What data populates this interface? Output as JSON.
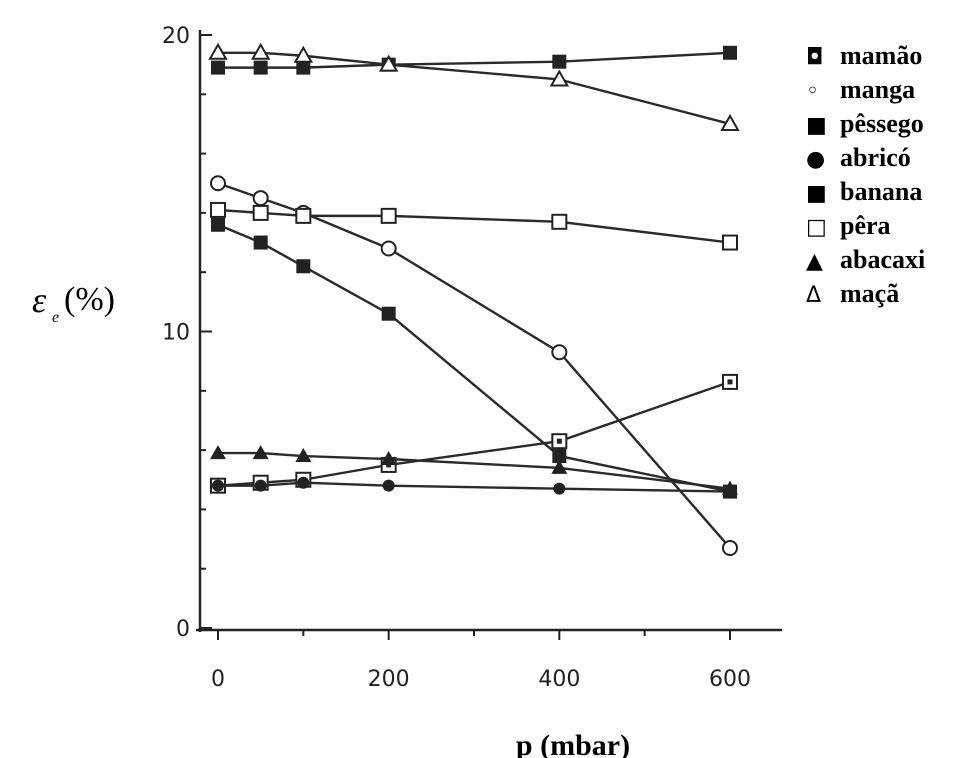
{
  "chart_data": {
    "type": "line",
    "xlabel": "p (mbar)",
    "ylabel": {
      "symbol": "ε",
      "subscript": "e",
      "unit": "(%)"
    },
    "xlim": [
      0,
      600
    ],
    "ylim": [
      0,
      20
    ],
    "xticks": [
      "0",
      "200",
      "400",
      "600"
    ],
    "yticks": [
      "0",
      "10",
      "20"
    ],
    "grid": false,
    "legend_position": "right",
    "series": [
      {
        "name": "mamão",
        "symbol": "◘",
        "marker": "square-dot",
        "x": [
          0,
          50,
          100,
          200,
          400,
          600
        ],
        "y": [
          4.8,
          4.9,
          5.0,
          5.5,
          6.3,
          8.3
        ]
      },
      {
        "name": "manga",
        "symbol": "◦",
        "marker": "circle-open",
        "x": [
          0,
          50,
          100,
          200,
          400,
          600
        ],
        "y": [
          15.0,
          14.5,
          14.0,
          12.8,
          9.3,
          2.7
        ]
      },
      {
        "name": "pêssego",
        "symbol": "■",
        "marker": "square-filled",
        "x": [
          0,
          50,
          100,
          200,
          400,
          600
        ],
        "y": [
          18.9,
          18.9,
          18.9,
          19.0,
          19.1,
          19.4
        ]
      },
      {
        "name": "abricó",
        "symbol": "●",
        "marker": "circle-filled",
        "x": [
          0,
          50,
          100,
          200,
          400,
          600
        ],
        "y": [
          4.8,
          4.8,
          4.9,
          4.8,
          4.7,
          4.6
        ]
      },
      {
        "name": "banana",
        "symbol": "■",
        "marker": "square-filled",
        "x": [
          0,
          50,
          100,
          200,
          400,
          600
        ],
        "y": [
          13.6,
          13.0,
          12.2,
          10.6,
          5.8,
          4.6
        ]
      },
      {
        "name": "pêra",
        "symbol": "□",
        "marker": "square-open",
        "x": [
          0,
          50,
          100,
          200,
          400,
          600
        ],
        "y": [
          14.1,
          14.0,
          13.9,
          13.9,
          13.7,
          13.0
        ]
      },
      {
        "name": "abacaxi",
        "symbol": "▲",
        "marker": "triangle-filled",
        "x": [
          0,
          50,
          100,
          200,
          400,
          600
        ],
        "y": [
          5.9,
          5.9,
          5.8,
          5.7,
          5.4,
          4.7
        ]
      },
      {
        "name": "maçã",
        "symbol": "Δ",
        "marker": "triangle-open",
        "x": [
          0,
          50,
          100,
          200,
          400,
          600
        ],
        "y": [
          19.4,
          19.4,
          19.3,
          19.0,
          18.5,
          17.0
        ]
      }
    ]
  }
}
